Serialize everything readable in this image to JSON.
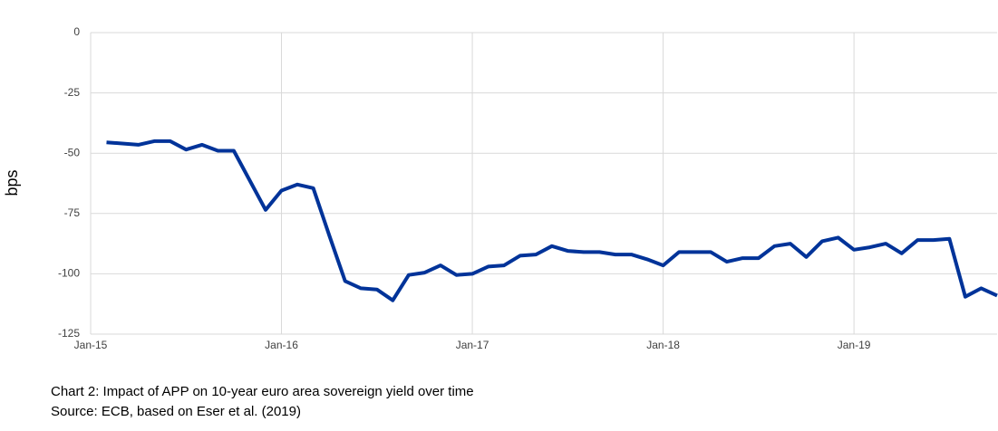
{
  "chart_data": {
    "type": "line",
    "y_label": "bps",
    "caption": [
      "Chart 2: Impact of APP on 10-year euro area sovereign yield over time",
      "Source: ECB, based on Eser et al. (2019)"
    ],
    "x": [
      "2015-02",
      "2015-04",
      "2015-05",
      "2015-06",
      "2015-07",
      "2015-08",
      "2015-09",
      "2015-10",
      "2015-12",
      "2016-01",
      "2016-02",
      "2016-03",
      "2016-04",
      "2016-05",
      "2016-06",
      "2016-07",
      "2016-08",
      "2016-09",
      "2016-10",
      "2016-11",
      "2016-12",
      "2017-01",
      "2017-02",
      "2017-03",
      "2017-04",
      "2017-05",
      "2017-06",
      "2017-07",
      "2017-08",
      "2017-09",
      "2017-10",
      "2017-11",
      "2017-12",
      "2018-01",
      "2018-02",
      "2018-03",
      "2018-04",
      "2018-05",
      "2018-06",
      "2018-07",
      "2018-08",
      "2018-09",
      "2018-10",
      "2018-11",
      "2018-12",
      "2019-01",
      "2019-02",
      "2019-03",
      "2019-04",
      "2019-05",
      "2019-06",
      "2019-07",
      "2019-08",
      "2019-09",
      "2019-10"
    ],
    "series": [
      {
        "name": "Impact",
        "color": "#003399",
        "values": [
          -45.5,
          -46.5,
          -45,
          -45,
          -48.5,
          -46.5,
          -49,
          -49,
          -73.5,
          -65.5,
          -63,
          -64.5,
          -84,
          -103,
          -106,
          -106.5,
          -111,
          -100.5,
          -99.5,
          -96.5,
          -100.5,
          -100,
          -97,
          -96.5,
          -92.5,
          -92,
          -88.5,
          -90.5,
          -91,
          -91,
          -92,
          -92,
          -94,
          -96.5,
          -91,
          -91,
          -91,
          -95,
          -93.5,
          -93.5,
          -88.5,
          -87.5,
          -93,
          -86.5,
          -85,
          -90,
          -89,
          -87.5,
          -91.5,
          -86,
          -86,
          -85.5,
          -109.5,
          -106,
          -109
        ]
      }
    ],
    "xlim": [
      "2015-01",
      "2019-10"
    ],
    "xticks": [
      {
        "value": "2015-01",
        "label": "Jan-15"
      },
      {
        "value": "2016-01",
        "label": "Jan-16"
      },
      {
        "value": "2017-01",
        "label": "Jan-17"
      },
      {
        "value": "2018-01",
        "label": "Jan-18"
      },
      {
        "value": "2019-01",
        "label": "Jan-19"
      }
    ],
    "ylim": [
      -125,
      0
    ],
    "yticks": [
      0,
      -25,
      -50,
      -75,
      -100,
      -125
    ],
    "grid": true
  }
}
